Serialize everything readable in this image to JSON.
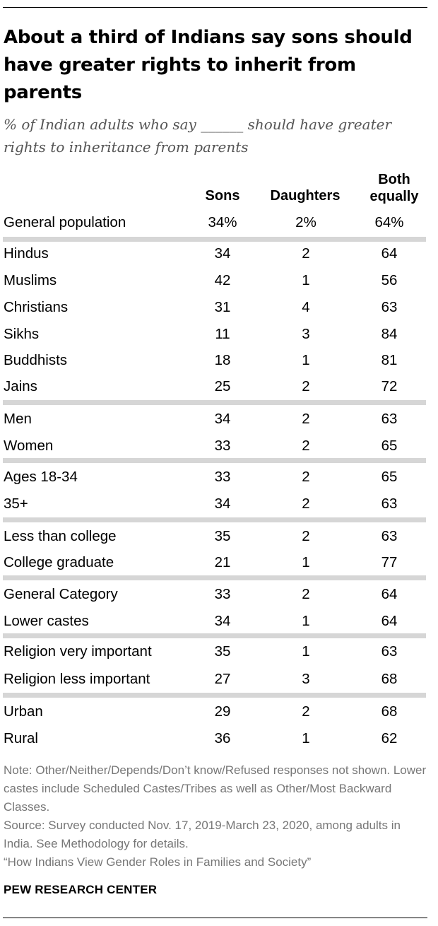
{
  "title": "About a third of Indians say sons should have greater rights to inherit from parents",
  "subtitle": "% of Indian adults who say ______ should have greater rights to inheritance from parents",
  "chart_data": {
    "type": "table",
    "columns": [
      "Sons",
      "Daughters",
      "Both equally"
    ],
    "rows": [
      {
        "label": "General population",
        "sons": "34%",
        "daughters": "2%",
        "both": "64%"
      },
      {
        "label": "Hindus",
        "sons": "34",
        "daughters": "2",
        "both": "64"
      },
      {
        "label": "Muslims",
        "sons": "42",
        "daughters": "1",
        "both": "56"
      },
      {
        "label": "Christians",
        "sons": "31",
        "daughters": "4",
        "both": "63"
      },
      {
        "label": "Sikhs",
        "sons": "11",
        "daughters": "3",
        "both": "84"
      },
      {
        "label": "Buddhists",
        "sons": "18",
        "daughters": "1",
        "both": "81"
      },
      {
        "label": "Jains",
        "sons": "25",
        "daughters": "2",
        "both": "72"
      },
      {
        "label": "Men",
        "sons": "34",
        "daughters": "2",
        "both": "63"
      },
      {
        "label": "Women",
        "sons": "33",
        "daughters": "2",
        "both": "65"
      },
      {
        "label": "Ages 18-34",
        "sons": "33",
        "daughters": "2",
        "both": "65"
      },
      {
        "label": "35+",
        "sons": "34",
        "daughters": "2",
        "both": "63"
      },
      {
        "label": "Less than college",
        "sons": "35",
        "daughters": "2",
        "both": "63"
      },
      {
        "label": "College graduate",
        "sons": "21",
        "daughters": "1",
        "both": "77"
      },
      {
        "label": "General Category",
        "sons": "33",
        "daughters": "2",
        "both": "64"
      },
      {
        "label": "Lower castes",
        "sons": "34",
        "daughters": "1",
        "both": "64"
      },
      {
        "label": "Religion very important",
        "sons": "35",
        "daughters": "1",
        "both": "63"
      },
      {
        "label": "Religion less important",
        "sons": "27",
        "daughters": "3",
        "both": "68"
      },
      {
        "label": "Urban",
        "sons": "29",
        "daughters": "2",
        "both": "68"
      },
      {
        "label": "Rural",
        "sons": "36",
        "daughters": "1",
        "both": "62"
      }
    ]
  },
  "headers": {
    "sons": "Sons",
    "daughters": "Daughters",
    "both_line1": "Both",
    "both_line2": "equally"
  },
  "notes": {
    "note": "Note: Other/Neither/Depends/Don’t know/Refused responses not shown. Lower castes include Scheduled Castes/Tribes as well as Other/Most Backward Classes.",
    "source": "Source: Survey conducted Nov. 17, 2019-March 23, 2020, among adults in India. See Methodology for details.",
    "report": "“How Indians View Gender Roles in Families and Society”"
  },
  "brand": "PEW RESEARCH CENTER",
  "colors": {
    "separator": "#d6d6d6",
    "subtitle": "#555555",
    "note": "#777777"
  }
}
